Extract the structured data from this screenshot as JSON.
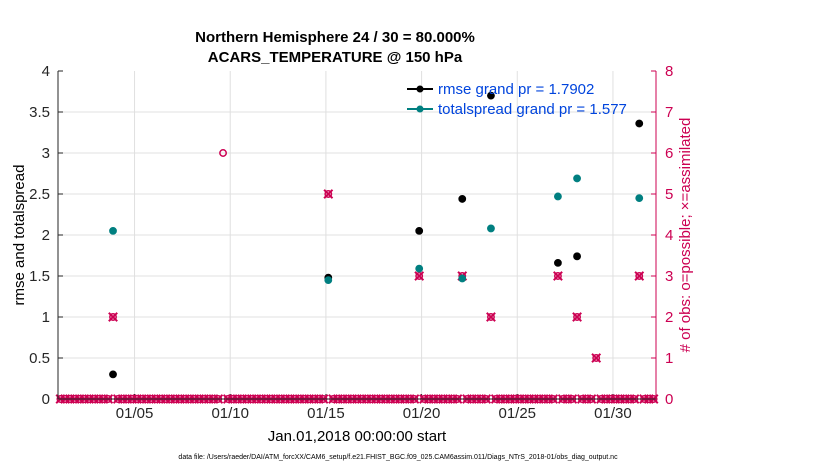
{
  "chart_data": {
    "type": "scatter",
    "title_line1": "Northern Hemisphere 24 / 30 = 80.000%",
    "title_line2": "ACARS_TEMPERATURE @ 150 hPa",
    "xlabel": "Jan.01,2018 00:00:00 start",
    "ylabel_left": "rmse and totalspread",
    "ylabel_right": "# of obs: o=possible; ×=assimilated",
    "xlim": [
      1,
      32.25
    ],
    "ylim_left": [
      0,
      4
    ],
    "ylim_right": [
      0,
      8
    ],
    "x_ticks": [
      5,
      10,
      15,
      20,
      25,
      30
    ],
    "x_tick_labels": [
      "01/05",
      "01/10",
      "01/15",
      "01/20",
      "01/25",
      "01/30"
    ],
    "y_left_ticks": [
      0,
      0.5,
      1,
      1.5,
      2,
      2.5,
      3,
      3.5,
      4
    ],
    "y_left_tick_labels": [
      "0",
      "0.5",
      "1",
      "1.5",
      "2",
      "2.5",
      "3",
      "3.5",
      "4"
    ],
    "y_right_ticks": [
      0,
      1,
      2,
      3,
      4,
      5,
      6,
      7,
      8
    ],
    "y_right_tick_labels": [
      "0",
      "1",
      "2",
      "3",
      "4",
      "5",
      "6",
      "7",
      "8"
    ],
    "grid": true,
    "legend_position": "top-right",
    "colors": {
      "rmse": "#000000",
      "totalspread": "#007f80",
      "obs": "#cc0052",
      "legend_text": "#0044dd",
      "grid": "#e0e0e0"
    },
    "series": [
      {
        "name": "rmse grand pr = 1.7902",
        "axis": "left",
        "points": [
          [
            3.875,
            0.3
          ],
          [
            15.125,
            1.48
          ],
          [
            19.875,
            2.05
          ],
          [
            22.125,
            2.44
          ],
          [
            23.625,
            3.7
          ],
          [
            27.125,
            1.66
          ],
          [
            28.125,
            1.74
          ],
          [
            31.375,
            3.36
          ]
        ]
      },
      {
        "name": "totalspread grand pr = 1.577",
        "axis": "left",
        "points": [
          [
            3.875,
            2.05
          ],
          [
            15.125,
            1.45
          ],
          [
            19.875,
            1.59
          ],
          [
            22.125,
            1.47
          ],
          [
            23.625,
            2.08
          ],
          [
            27.125,
            2.47
          ],
          [
            28.125,
            2.69
          ],
          [
            31.375,
            2.45
          ]
        ]
      }
    ],
    "obs_possible_nonzero": [
      [
        3.875,
        2
      ],
      [
        9.625,
        6
      ],
      [
        15.125,
        5
      ],
      [
        19.875,
        3
      ],
      [
        22.125,
        3
      ],
      [
        23.625,
        2
      ],
      [
        27.125,
        3
      ],
      [
        28.125,
        2
      ],
      [
        29.125,
        1
      ],
      [
        31.375,
        3
      ]
    ],
    "obs_assimilated_nonzero": [
      [
        3.875,
        2
      ],
      [
        15.125,
        5
      ],
      [
        19.875,
        3
      ],
      [
        22.125,
        3
      ],
      [
        23.625,
        2
      ],
      [
        27.125,
        3
      ],
      [
        28.125,
        2
      ],
      [
        29.125,
        1
      ],
      [
        31.375,
        3
      ]
    ],
    "obs_zero_marker_spacing_days": 0.25,
    "footnote": "data file: /Users/raeder/DAI/ATM_forcXX/CAM6_setup/f.e21.FHIST_BGC.f09_025.CAM6assim.011/Diags_NTrS_2018-01/obs_diag_output.nc"
  }
}
